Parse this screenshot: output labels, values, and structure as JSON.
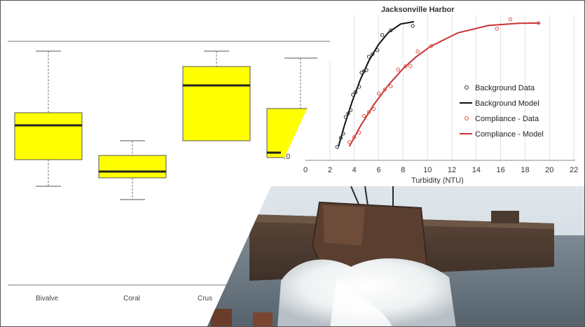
{
  "boxplot": {
    "categories": [
      "Bivalve",
      "Coral",
      "Crus"
    ]
  },
  "scatter": {
    "title": "Jacksonville Harbor",
    "xlabel": "Turbidity (NTU)",
    "y_tick_visible": "0.0",
    "x_ticks": [
      "0",
      "2",
      "4",
      "6",
      "8",
      "10",
      "12",
      "14",
      "16",
      "18",
      "20",
      "22"
    ],
    "legend": [
      {
        "label": "Background Data",
        "color": "#333333",
        "kind": "marker"
      },
      {
        "label": "Background Model",
        "color": "#111111",
        "kind": "line"
      },
      {
        "label": "Compliance - Data",
        "color": "#d9534f",
        "kind": "marker"
      },
      {
        "label": "Compliance - Model",
        "color": "#cc3333",
        "kind": "line"
      }
    ]
  },
  "chart_data": [
    {
      "type": "box",
      "categories": [
        "Bivalve",
        "Coral",
        "Crus"
      ],
      "colors": {
        "box": "#ffff00",
        "whisker": "#777777"
      }
    },
    {
      "type": "scatter",
      "title": "Jacksonville Harbor",
      "xlabel": "Turbidity (NTU)",
      "xlim": [
        0,
        22
      ],
      "series": [
        {
          "name": "Background Data",
          "color": "#333333",
          "x": [
            2.6,
            2.9,
            3.1,
            3.3,
            3.5,
            3.7,
            3.9,
            4.1,
            4.4,
            4.6,
            4.8,
            5.0,
            5.2,
            5.5,
            5.9,
            6.3,
            7.0,
            8.8
          ]
        },
        {
          "name": "Background Model",
          "color": "#111111",
          "x": [
            2.7,
            3.2,
            3.8,
            4.5,
            5.2,
            6.0,
            6.8,
            7.8,
            8.9
          ]
        },
        {
          "name": "Compliance - Data",
          "color": "#d9534f",
          "x": [
            3.6,
            4.0,
            4.4,
            4.8,
            5.2,
            5.6,
            6.0,
            6.5,
            7.0,
            7.6,
            8.2,
            8.6,
            9.2,
            10.3,
            15.7,
            16.8,
            19.1
          ]
        },
        {
          "name": "Compliance - Model",
          "color": "#cc3333",
          "x": [
            3.6,
            4.5,
            5.6,
            6.8,
            8.0,
            9.0,
            10.2,
            12.5,
            15.0,
            17.5,
            19.2
          ]
        }
      ]
    }
  ]
}
